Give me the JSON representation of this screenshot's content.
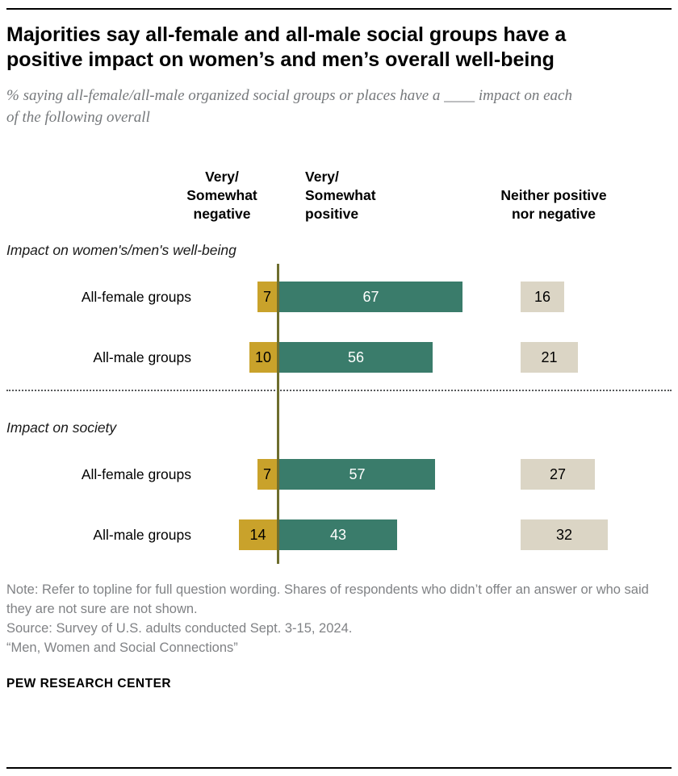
{
  "title": "Majorities say all-female and all-male social groups have a positive impact on women’s and men’s overall well-being",
  "subtitle": "% saying all-female/all-male organized social groups or places have a ____ impact on each of the following overall",
  "columns": {
    "negative": "Very/\nSomewhat\nnegative",
    "positive": "Very/\nSomewhat\npositive",
    "neither": "Neither positive\nnor negative"
  },
  "chart_data": {
    "type": "bar",
    "orientation": "horizontal",
    "unit": "percent",
    "colors": {
      "negative": "#C9A22B",
      "positive": "#3A7C6B",
      "neither": "#DBD5C5",
      "axis": "#6E6E2E"
    },
    "sections": [
      {
        "label": "Impact on women's/men's well-being",
        "rows": [
          {
            "label": "All-female groups",
            "negative": 7,
            "positive": 67,
            "neither": 16
          },
          {
            "label": "All-male groups",
            "negative": 10,
            "positive": 56,
            "neither": 21
          }
        ]
      },
      {
        "label": "Impact on society",
        "rows": [
          {
            "label": "All-female groups",
            "negative": 7,
            "positive": 57,
            "neither": 27
          },
          {
            "label": "All-male groups",
            "negative": 14,
            "positive": 43,
            "neither": 32
          }
        ]
      }
    ]
  },
  "notes": [
    "Note: Refer to topline for full question wording. Shares of respondents who didn’t offer an answer or who said they are not sure are not shown.",
    "Source: Survey of U.S. adults conducted Sept. 3-15, 2024.",
    "“Men, Women and Social Connections”"
  ],
  "footer": "PEW RESEARCH CENTER"
}
